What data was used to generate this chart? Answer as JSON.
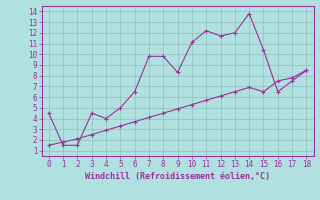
{
  "xlabel": "Windchill (Refroidissement éolien,°C)",
  "xlim": [
    -0.5,
    18.5
  ],
  "ylim": [
    0.5,
    14.5
  ],
  "xticks": [
    0,
    1,
    2,
    3,
    4,
    5,
    6,
    7,
    8,
    9,
    10,
    11,
    12,
    13,
    14,
    15,
    16,
    17,
    18
  ],
  "yticks": [
    1,
    2,
    3,
    4,
    5,
    6,
    7,
    8,
    9,
    10,
    11,
    12,
    13,
    14
  ],
  "line_color": "#993399",
  "bg_color": "#b0e0e0",
  "grid_color": "#8fbfbf",
  "curve1_x": [
    0,
    1,
    2,
    3,
    4,
    5,
    6,
    7,
    8,
    9,
    10,
    11,
    12,
    13,
    14,
    15,
    16,
    17,
    18
  ],
  "curve1_y": [
    4.5,
    1.5,
    1.5,
    4.5,
    4.0,
    5.0,
    6.5,
    9.8,
    9.8,
    8.3,
    11.1,
    12.2,
    11.7,
    12.0,
    13.8,
    10.4,
    6.5,
    7.5,
    8.5
  ],
  "curve2_x": [
    0,
    1,
    2,
    3,
    4,
    5,
    6,
    7,
    8,
    9,
    10,
    11,
    12,
    13,
    14,
    15,
    16,
    17,
    18
  ],
  "curve2_y": [
    1.5,
    1.8,
    2.1,
    2.5,
    2.9,
    3.3,
    3.7,
    4.1,
    4.5,
    4.9,
    5.3,
    5.7,
    6.1,
    6.5,
    6.9,
    6.5,
    7.5,
    7.8,
    8.5
  ],
  "marker": "+"
}
